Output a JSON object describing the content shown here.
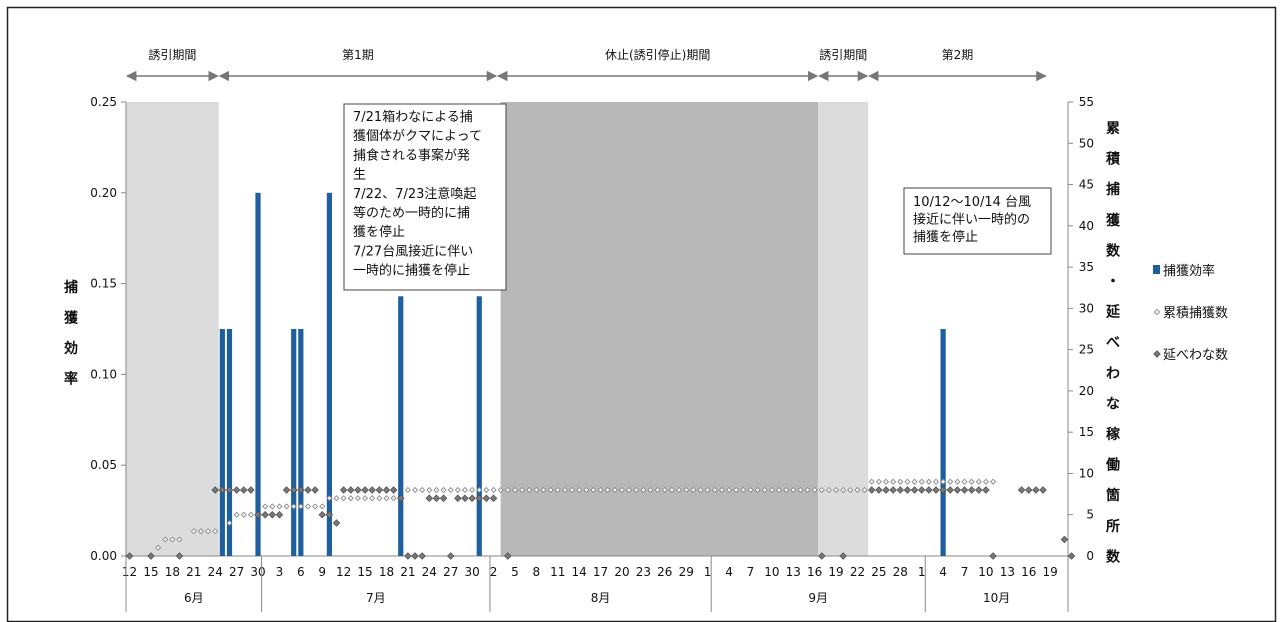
{
  "chart_data": {
    "type": "bar",
    "ylabel_left": "捕獲効率",
    "ylabel_right": "累積捕獲数・延べわな稼働箇所数",
    "ylim_left": [
      0,
      0.25
    ],
    "yticks_left": [
      "0.00",
      "0.05",
      "0.10",
      "0.15",
      "0.20",
      "0.25"
    ],
    "ylim_right": [
      0,
      55
    ],
    "yticks_right": [
      "0",
      "5",
      "10",
      "15",
      "20",
      "25",
      "30",
      "35",
      "40",
      "45",
      "50",
      "55"
    ],
    "x_tick_labels": [
      "12",
      "15",
      "18",
      "21",
      "24",
      "27",
      "30",
      "3",
      "6",
      "9",
      "12",
      "15",
      "18",
      "21",
      "24",
      "27",
      "30",
      "2",
      "5",
      "8",
      "11",
      "14",
      "17",
      "20",
      "23",
      "26",
      "29",
      "1",
      "4",
      "7",
      "10",
      "13",
      "16",
      "19",
      "22",
      "25",
      "28",
      "1",
      "4",
      "7",
      "10",
      "13",
      "16",
      "19"
    ],
    "months": [
      {
        "label": "6月",
        "start": 0,
        "end": 19
      },
      {
        "label": "7月",
        "start": 19,
        "end": 51
      },
      {
        "label": "8月",
        "start": 51,
        "end": 82
      },
      {
        "label": "9月",
        "start": 82,
        "end": 112
      },
      {
        "label": "10月",
        "start": 112,
        "end": 132
      }
    ],
    "periods": [
      {
        "label": "誘引期間",
        "start": 0,
        "end": 13
      },
      {
        "label": "第1期",
        "start": 13,
        "end": 52
      },
      {
        "label": "休止(誘引停止)期間",
        "start": 52,
        "end": 97
      },
      {
        "label": "誘引期間",
        "start": 97,
        "end": 104
      },
      {
        "label": "第2期",
        "start": 104,
        "end": 129
      }
    ],
    "shaded_regions": [
      {
        "name": "lure-period-1",
        "start": 0,
        "end": 13,
        "color": "#dcdcdc"
      },
      {
        "name": "pause-period",
        "start": 52.5,
        "end": 97,
        "color": "#b8b8b8"
      },
      {
        "name": "lure-period-2",
        "start": 97,
        "end": 104,
        "color": "#dcdcdc"
      }
    ],
    "series": [
      {
        "name": "捕獲効率",
        "kind": "bar",
        "axis": "left",
        "color": "#1f5f9e",
        "points": [
          [
            13,
            0.125
          ],
          [
            14,
            0.125
          ],
          [
            18,
            0.2
          ],
          [
            23,
            0.125
          ],
          [
            24,
            0.125
          ],
          [
            28,
            0.2
          ],
          [
            38,
            0.143
          ],
          [
            49,
            0.143
          ],
          [
            114,
            0.125
          ]
        ]
      },
      {
        "name": "累積捕獲数",
        "kind": "marker",
        "axis": "right",
        "marker": "hollow",
        "color": "#888888",
        "points": [
          [
            4,
            1
          ],
          [
            5,
            2
          ],
          [
            6,
            2
          ],
          [
            7,
            2
          ],
          [
            9,
            3
          ],
          [
            10,
            3
          ],
          [
            11,
            3
          ],
          [
            12,
            3
          ],
          [
            14,
            4
          ],
          [
            15,
            5
          ],
          [
            16,
            5
          ],
          [
            17,
            5
          ],
          [
            19,
            6
          ],
          [
            20,
            6
          ],
          [
            21,
            6
          ],
          [
            22,
            6
          ],
          [
            23,
            6
          ],
          [
            24,
            6
          ],
          [
            25,
            6
          ],
          [
            26,
            6
          ],
          [
            27,
            6
          ],
          [
            28,
            7
          ],
          [
            29,
            7
          ],
          [
            30,
            7
          ],
          [
            31,
            7
          ],
          [
            32,
            7
          ],
          [
            33,
            7
          ],
          [
            34,
            7
          ],
          [
            35,
            7
          ],
          [
            36,
            7
          ],
          [
            37,
            7
          ],
          [
            38,
            7
          ],
          [
            39,
            8
          ],
          [
            40,
            8
          ],
          [
            41,
            8
          ],
          [
            42,
            8
          ],
          [
            43,
            8
          ],
          [
            44,
            8
          ],
          [
            45,
            8
          ],
          [
            46,
            8
          ],
          [
            47,
            8
          ],
          [
            48,
            8
          ],
          [
            49,
            8
          ],
          [
            50,
            8
          ],
          [
            51,
            8
          ],
          [
            52,
            8
          ],
          [
            53,
            8
          ],
          [
            54,
            8
          ],
          [
            55,
            8
          ],
          [
            56,
            8
          ],
          [
            57,
            8
          ],
          [
            58,
            8
          ],
          [
            59,
            8
          ],
          [
            60,
            8
          ],
          [
            61,
            8
          ],
          [
            62,
            8
          ],
          [
            63,
            8
          ],
          [
            64,
            8
          ],
          [
            65,
            8
          ],
          [
            66,
            8
          ],
          [
            67,
            8
          ],
          [
            68,
            8
          ],
          [
            69,
            8
          ],
          [
            70,
            8
          ],
          [
            71,
            8
          ],
          [
            72,
            8
          ],
          [
            73,
            8
          ],
          [
            74,
            8
          ],
          [
            75,
            8
          ],
          [
            76,
            8
          ],
          [
            77,
            8
          ],
          [
            78,
            8
          ],
          [
            79,
            8
          ],
          [
            80,
            8
          ],
          [
            81,
            8
          ],
          [
            82,
            8
          ],
          [
            83,
            8
          ],
          [
            84,
            8
          ],
          [
            85,
            8
          ],
          [
            86,
            8
          ],
          [
            87,
            8
          ],
          [
            88,
            8
          ],
          [
            89,
            8
          ],
          [
            90,
            8
          ],
          [
            91,
            8
          ],
          [
            92,
            8
          ],
          [
            93,
            8
          ],
          [
            94,
            8
          ],
          [
            95,
            8
          ],
          [
            96,
            8
          ],
          [
            97,
            8
          ],
          [
            98,
            8
          ],
          [
            99,
            8
          ],
          [
            100,
            8
          ],
          [
            101,
            8
          ],
          [
            102,
            8
          ],
          [
            103,
            8
          ],
          [
            104,
            9
          ],
          [
            105,
            9
          ],
          [
            106,
            9
          ],
          [
            107,
            9
          ],
          [
            108,
            9
          ],
          [
            109,
            9
          ],
          [
            110,
            9
          ],
          [
            111,
            9
          ],
          [
            112,
            9
          ],
          [
            113,
            9
          ],
          [
            114,
            9
          ],
          [
            115,
            9
          ],
          [
            116,
            9
          ],
          [
            117,
            9
          ],
          [
            118,
            9
          ],
          [
            119,
            9
          ],
          [
            120,
            9
          ],
          [
            121,
            9
          ]
        ]
      },
      {
        "name": "延べわな数",
        "kind": "marker",
        "axis": "right",
        "marker": "filled",
        "color": "#777777",
        "points": [
          [
            0,
            0
          ],
          [
            3,
            0
          ],
          [
            7,
            0
          ],
          [
            12,
            8
          ],
          [
            13,
            8
          ],
          [
            14,
            8
          ],
          [
            15,
            8
          ],
          [
            16,
            8
          ],
          [
            17,
            8
          ],
          [
            18,
            5
          ],
          [
            19,
            5
          ],
          [
            20,
            5
          ],
          [
            21,
            5
          ],
          [
            22,
            8
          ],
          [
            23,
            8
          ],
          [
            24,
            8
          ],
          [
            25,
            8
          ],
          [
            26,
            8
          ],
          [
            27,
            5
          ],
          [
            28,
            5
          ],
          [
            29,
            4
          ],
          [
            30,
            8
          ],
          [
            31,
            8
          ],
          [
            32,
            8
          ],
          [
            33,
            8
          ],
          [
            34,
            8
          ],
          [
            35,
            8
          ],
          [
            36,
            8
          ],
          [
            37,
            8
          ],
          [
            38,
            7
          ],
          [
            39,
            0
          ],
          [
            40,
            0
          ],
          [
            41,
            0
          ],
          [
            42,
            7
          ],
          [
            43,
            7
          ],
          [
            44,
            7
          ],
          [
            45,
            0
          ],
          [
            46,
            7
          ],
          [
            47,
            7
          ],
          [
            48,
            7
          ],
          [
            49,
            7
          ],
          [
            50,
            7
          ],
          [
            51,
            7
          ],
          [
            53,
            0
          ],
          [
            97,
            0
          ],
          [
            100,
            0
          ],
          [
            104,
            8
          ],
          [
            105,
            8
          ],
          [
            106,
            8
          ],
          [
            107,
            8
          ],
          [
            108,
            8
          ],
          [
            109,
            8
          ],
          [
            110,
            8
          ],
          [
            111,
            8
          ],
          [
            112,
            8
          ],
          [
            113,
            8
          ],
          [
            114,
            8
          ],
          [
            115,
            8
          ],
          [
            116,
            8
          ],
          [
            117,
            8
          ],
          [
            118,
            8
          ],
          [
            119,
            8
          ],
          [
            120,
            8
          ],
          [
            121,
            0
          ],
          [
            125,
            8
          ],
          [
            126,
            8
          ],
          [
            127,
            8
          ],
          [
            128,
            8
          ],
          [
            131,
            2
          ],
          [
            132,
            0
          ]
        ]
      }
    ],
    "annotations": [
      {
        "name": "july-note",
        "lines": [
          "7/21箱わなによる捕",
          "獲個体がクマによって",
          "捕食される事案が発",
          "生",
          "7/22、7/23注意喚起",
          "等のため一時的に捕",
          "獲を停止",
          "7/27台風接近に伴い",
          "一時的に捕獲を停止"
        ]
      },
      {
        "name": "october-note",
        "lines": [
          "10/12〜10/14 台風",
          "接近に伴い一時的の",
          "捕獲を停止"
        ]
      }
    ],
    "legend": {
      "position": "right",
      "entries": [
        "捕獲効率",
        "累積捕獲数",
        "延べわな数"
      ]
    }
  }
}
